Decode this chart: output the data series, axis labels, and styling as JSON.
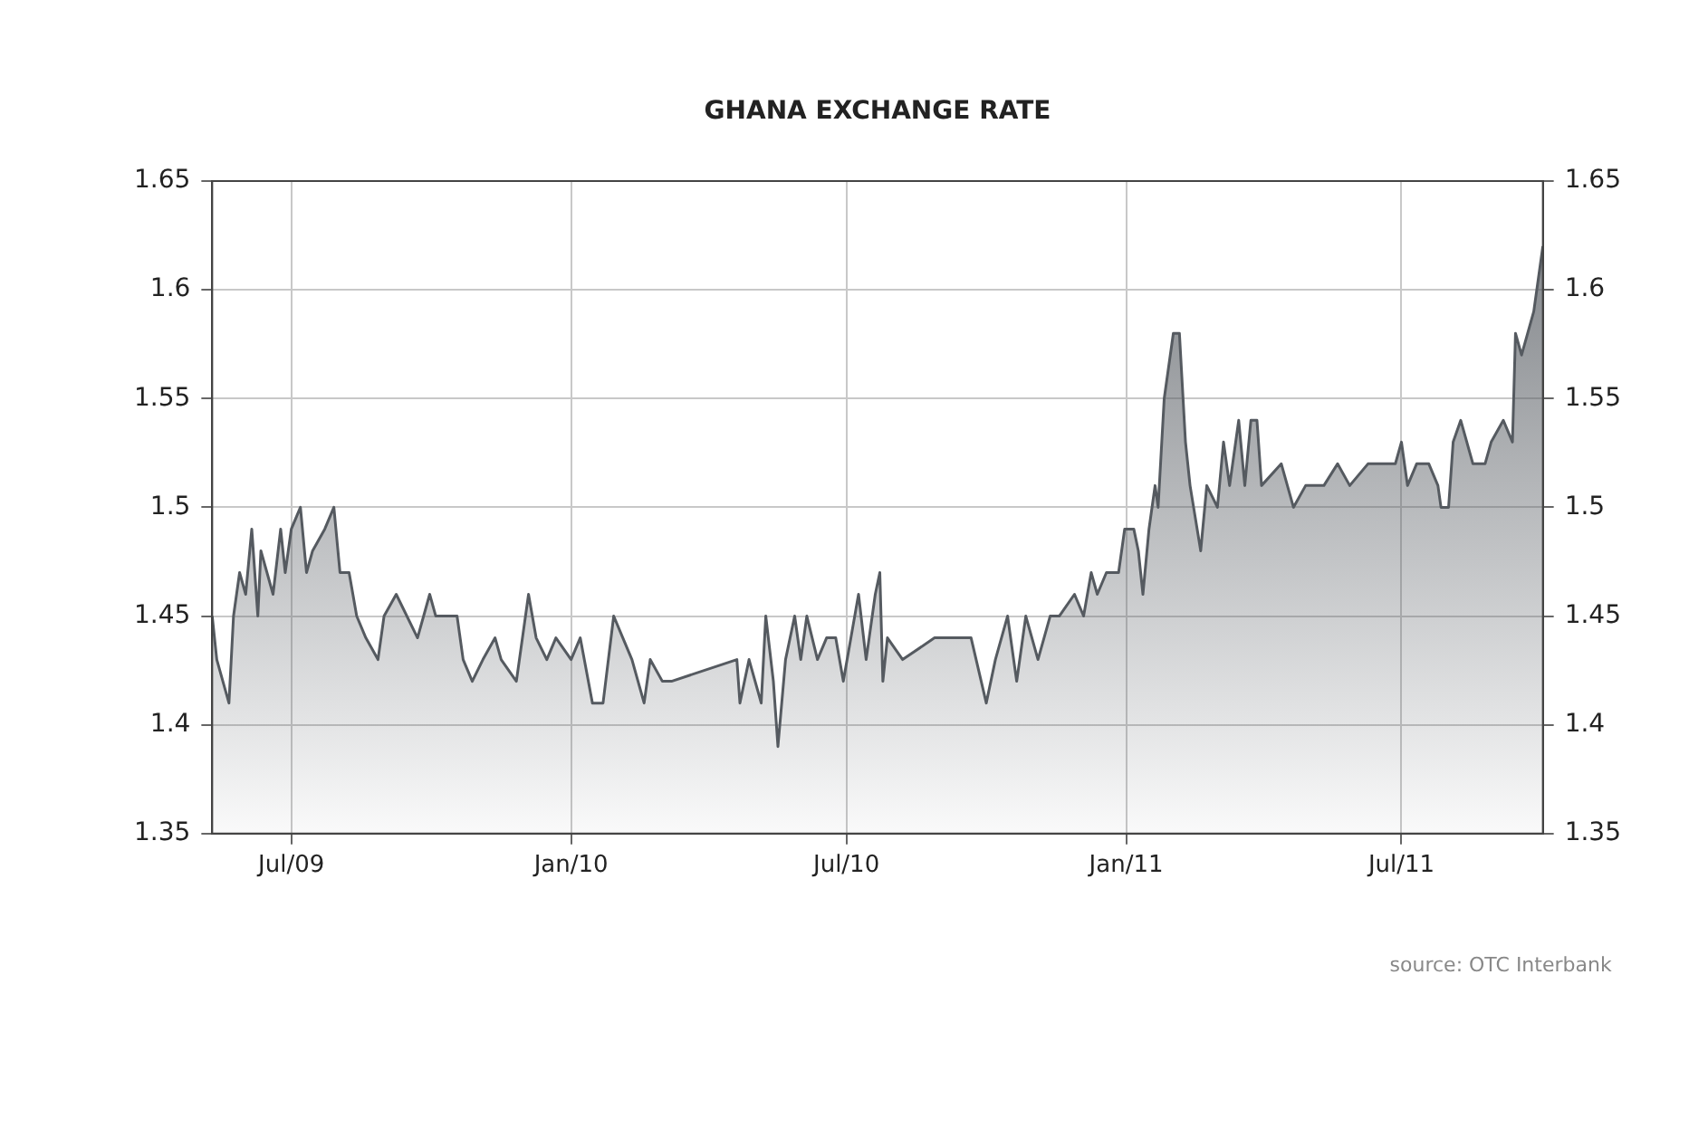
{
  "chart_data": {
    "type": "area",
    "title": "GHANA EXCHANGE RATE",
    "annotations": [
      "source: OTC Interbank"
    ],
    "xlim": [
      "2009-05-10",
      "2011-10-02"
    ],
    "xticks": [
      {
        "value": "2009-07-01",
        "label": "Jul/09"
      },
      {
        "value": "2010-01-01",
        "label": "Jan/10"
      },
      {
        "value": "2010-07-01",
        "label": "Jul/10"
      },
      {
        "value": "2011-01-01",
        "label": "Jan/11"
      },
      {
        "value": "2011-07-01",
        "label": "Jul/11"
      }
    ],
    "ylim": [
      1.35,
      1.65
    ],
    "yticks": [
      1.35,
      1.4,
      1.45,
      1.5,
      1.55,
      1.6,
      1.65
    ],
    "y2lim": [
      1.35,
      1.65
    ],
    "y2ticks": [
      1.35,
      1.4,
      1.45,
      1.5,
      1.55,
      1.6,
      1.65
    ],
    "grid": true,
    "legend": false,
    "line_style": "solid",
    "marker": "none",
    "series": [
      {
        "color": "#555a60",
        "x": [
          "2009-05-10",
          "2009-05-13",
          "2009-05-21",
          "2009-05-24",
          "2009-05-28",
          "2009-06-01",
          "2009-06-05",
          "2009-06-09",
          "2009-06-11",
          "2009-06-19",
          "2009-06-24",
          "2009-06-27",
          "2009-07-01",
          "2009-07-07",
          "2009-07-11",
          "2009-07-15",
          "2009-07-23",
          "2009-07-29",
          "2009-08-02",
          "2009-08-08",
          "2009-08-13",
          "2009-08-19",
          "2009-08-27",
          "2009-08-31",
          "2009-09-08",
          "2009-09-22",
          "2009-09-30",
          "2009-10-04",
          "2009-10-18",
          "2009-10-22",
          "2009-10-28",
          "2009-11-04",
          "2009-11-12",
          "2009-11-16",
          "2009-11-26",
          "2009-12-04",
          "2009-12-09",
          "2009-12-16",
          "2009-12-22",
          "2010-01-01",
          "2010-01-07",
          "2010-01-15",
          "2010-01-22",
          "2010-01-29",
          "2010-02-04",
          "2010-02-10",
          "2010-02-18",
          "2010-02-22",
          "2010-03-02",
          "2010-03-08",
          "2010-04-20",
          "2010-04-22",
          "2010-04-28",
          "2010-05-06",
          "2010-05-09",
          "2010-05-14",
          "2010-05-17",
          "2010-05-22",
          "2010-05-28",
          "2010-06-01",
          "2010-06-05",
          "2010-06-12",
          "2010-06-18",
          "2010-06-24",
          "2010-06-29",
          "2010-07-04",
          "2010-07-09",
          "2010-07-14",
          "2010-07-20",
          "2010-07-23",
          "2010-07-25",
          "2010-07-28",
          "2010-08-07",
          "2010-08-28",
          "2010-09-21",
          "2010-10-01",
          "2010-10-07",
          "2010-10-15",
          "2010-10-21",
          "2010-10-27",
          "2010-11-04",
          "2010-11-12",
          "2010-11-18",
          "2010-11-28",
          "2010-12-04",
          "2010-12-09",
          "2010-12-13",
          "2010-12-19",
          "2010-12-27",
          "2010-12-31",
          "2011-01-06",
          "2011-01-09",
          "2011-01-12",
          "2011-01-16",
          "2011-01-20",
          "2011-01-22",
          "2011-01-26",
          "2011-02-01",
          "2011-02-05",
          "2011-02-09",
          "2011-02-12",
          "2011-02-19",
          "2011-02-23",
          "2011-03-02",
          "2011-03-06",
          "2011-03-10",
          "2011-03-16",
          "2011-03-20",
          "2011-03-24",
          "2011-03-28",
          "2011-03-31",
          "2011-04-13",
          "2011-04-21",
          "2011-04-29",
          "2011-05-11",
          "2011-05-20",
          "2011-05-28",
          "2011-06-09",
          "2011-06-21",
          "2011-06-27",
          "2011-07-01",
          "2011-07-05",
          "2011-07-11",
          "2011-07-19",
          "2011-07-25",
          "2011-07-27",
          "2011-08-01",
          "2011-08-04",
          "2011-08-09",
          "2011-08-17",
          "2011-08-25",
          "2011-08-29",
          "2011-09-06",
          "2011-09-12",
          "2011-09-14",
          "2011-09-18",
          "2011-09-26",
          "2011-10-02"
        ],
        "values": [
          1.45,
          1.43,
          1.41,
          1.45,
          1.47,
          1.46,
          1.49,
          1.45,
          1.48,
          1.46,
          1.49,
          1.47,
          1.49,
          1.5,
          1.47,
          1.48,
          1.49,
          1.5,
          1.47,
          1.47,
          1.45,
          1.44,
          1.43,
          1.45,
          1.46,
          1.44,
          1.46,
          1.45,
          1.45,
          1.43,
          1.42,
          1.43,
          1.44,
          1.43,
          1.42,
          1.46,
          1.44,
          1.43,
          1.44,
          1.43,
          1.44,
          1.41,
          1.41,
          1.45,
          1.44,
          1.43,
          1.41,
          1.43,
          1.42,
          1.42,
          1.43,
          1.41,
          1.43,
          1.41,
          1.45,
          1.42,
          1.39,
          1.43,
          1.45,
          1.43,
          1.45,
          1.43,
          1.44,
          1.44,
          1.42,
          1.44,
          1.46,
          1.43,
          1.46,
          1.47,
          1.42,
          1.44,
          1.43,
          1.44,
          1.44,
          1.41,
          1.43,
          1.45,
          1.42,
          1.45,
          1.43,
          1.45,
          1.45,
          1.46,
          1.45,
          1.47,
          1.46,
          1.47,
          1.47,
          1.49,
          1.49,
          1.48,
          1.46,
          1.49,
          1.51,
          1.5,
          1.55,
          1.58,
          1.58,
          1.53,
          1.51,
          1.48,
          1.51,
          1.5,
          1.53,
          1.51,
          1.54,
          1.51,
          1.54,
          1.54,
          1.51,
          1.52,
          1.5,
          1.51,
          1.51,
          1.52,
          1.51,
          1.52,
          1.52,
          1.52,
          1.53,
          1.51,
          1.52,
          1.52,
          1.51,
          1.5,
          1.5,
          1.53,
          1.54,
          1.52,
          1.52,
          1.53,
          1.54,
          1.53,
          1.58,
          1.57,
          1.59,
          1.62
        ]
      }
    ]
  }
}
